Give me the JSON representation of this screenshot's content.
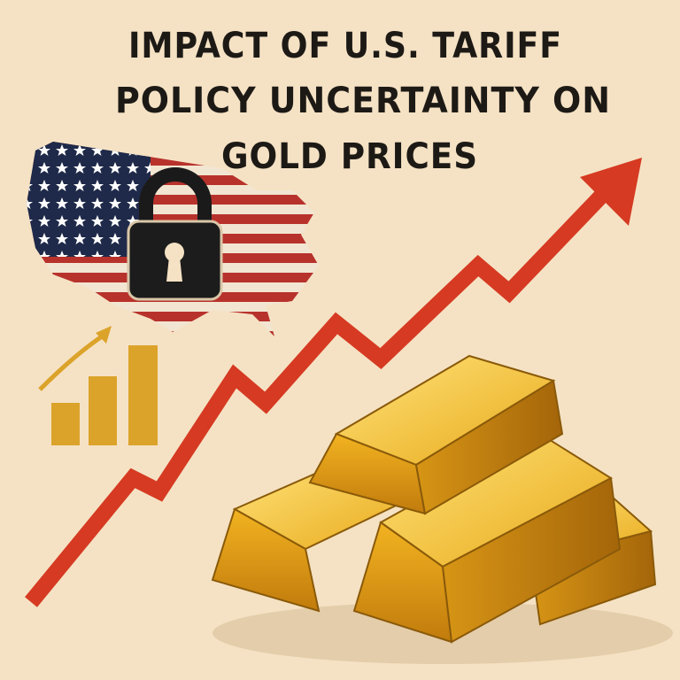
{
  "title_lines": [
    "IMPACT OF U.S. TARIFF",
    "POLICY UNCERTAINTY ON",
    "GOLD PRICES"
  ]
}
